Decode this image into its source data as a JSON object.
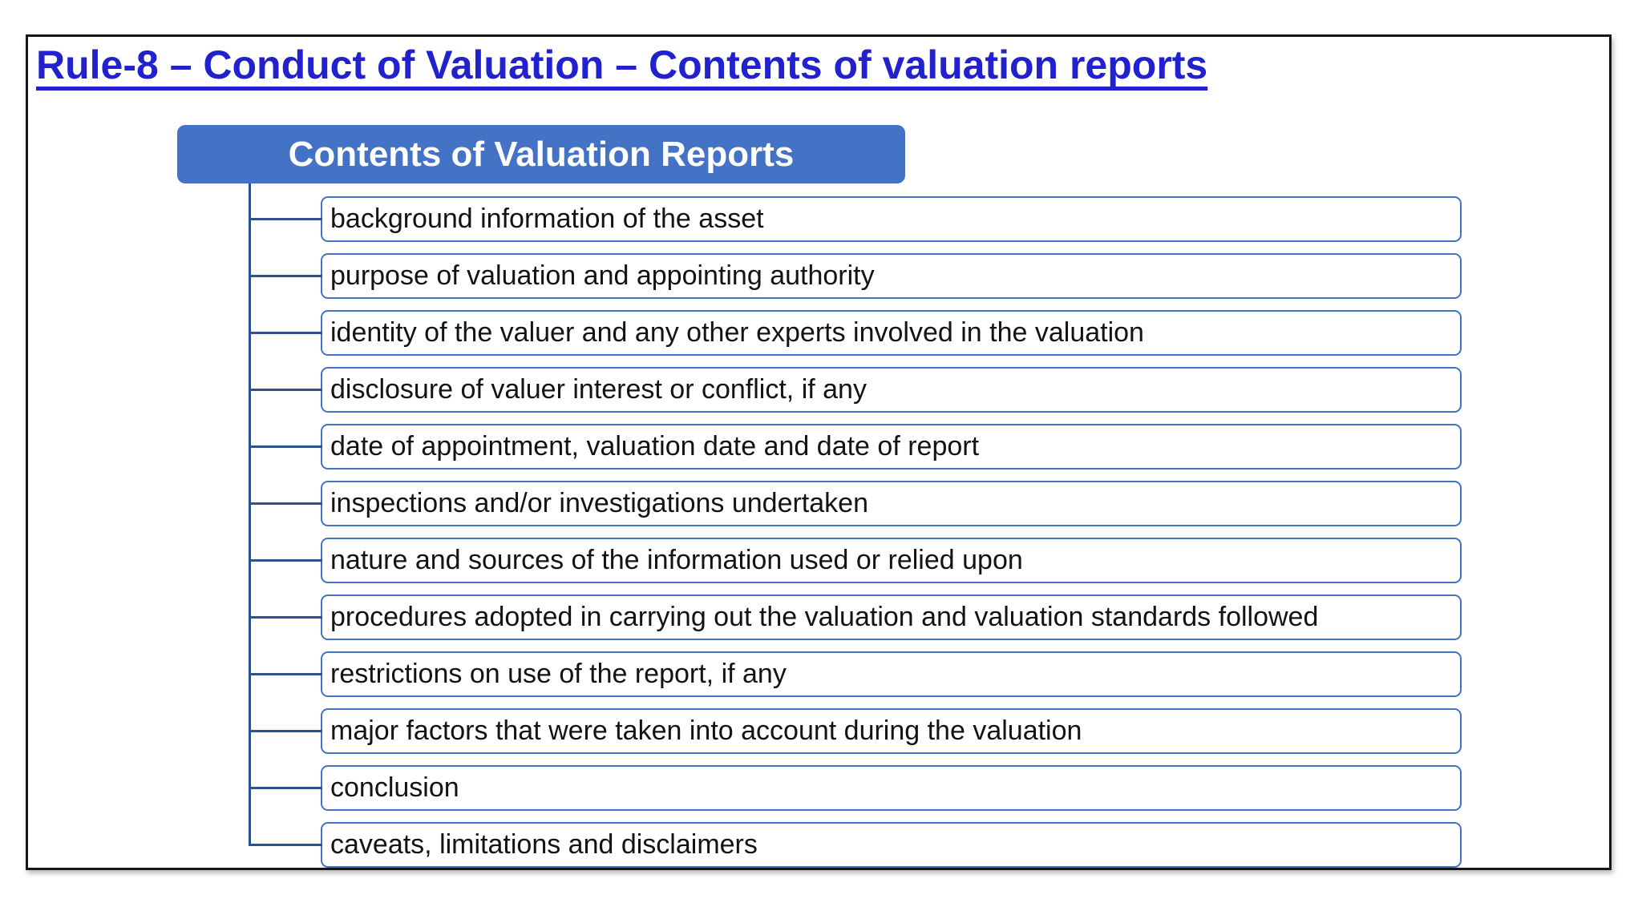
{
  "slide": {
    "title": "Rule-8 – Conduct of Valuation – Contents of valuation reports",
    "title_color": "#2121cd",
    "frame_color": "#161616"
  },
  "tree": {
    "root_label": "Contents of Valuation Reports",
    "root_fill": "#4472c4",
    "root_text_color": "#ffffff",
    "item_border_color": "#4472c4",
    "connector_color": "#2f528f",
    "items": [
      "background information of the asset",
      "purpose of valuation and appointing authority",
      "identity of the valuer and any other experts involved in the valuation",
      "disclosure of valuer interest or conflict, if any",
      "date of appointment, valuation date and date of report",
      "inspections and/or investigations undertaken",
      "nature and sources of the information used or relied upon",
      "procedures adopted in carrying out the valuation and valuation standards followed",
      "restrictions on use of the report, if any",
      "major factors that were taken into account during the valuation",
      "conclusion",
      "caveats, limitations and disclaimers"
    ]
  }
}
